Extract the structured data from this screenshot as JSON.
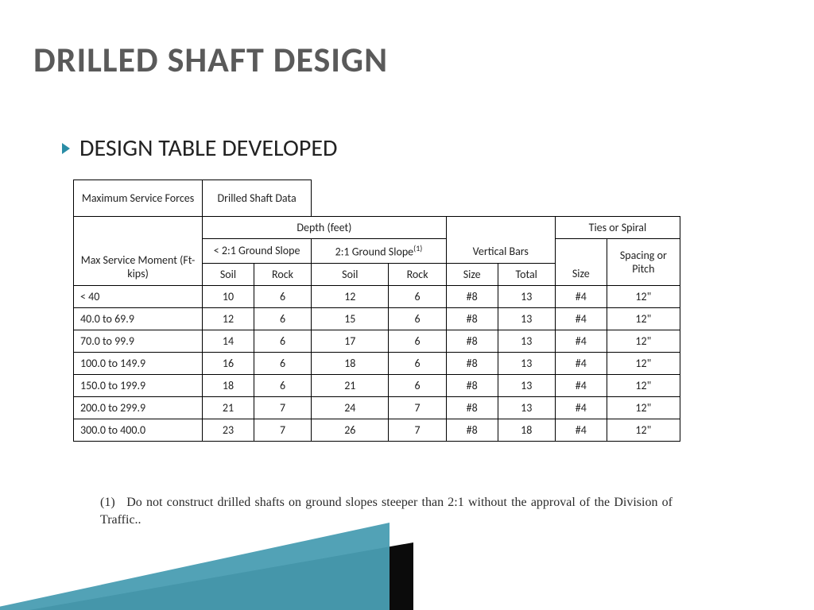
{
  "title": "DRILLED SHAFT DESIGN",
  "bullet": "DESIGN TABLE DEVELOPED",
  "table": {
    "header": {
      "msf": "Maximum Service Forces",
      "dsd": "Drilled Shaft Data",
      "depth": "Depth (feet)",
      "slope_lt": "< 2:1 Ground Slope",
      "slope_eq": "2:1 Ground Slope",
      "slope_eq_sup": "(1)",
      "vbars": "Vertical Bars",
      "ties": "Ties or Spiral",
      "moment": "Max Service Moment (Ft-kips)",
      "soil": "Soil",
      "rock": "Rock",
      "size": "Size",
      "total": "Total",
      "spacing": "Spacing or Pitch"
    },
    "columns_width": [
      "130",
      "52",
      "58",
      "78",
      "58",
      "52",
      "58",
      "52",
      "74"
    ],
    "rows": [
      {
        "label": "< 40",
        "soil1": "10",
        "rock1": "6",
        "soil2": "12",
        "rock2": "6",
        "vsize": "#8",
        "vtotal": "13",
        "tsize": "#4",
        "pitch": "12\""
      },
      {
        "label": "40.0 to 69.9",
        "soil1": "12",
        "rock1": "6",
        "soil2": "15",
        "rock2": "6",
        "vsize": "#8",
        "vtotal": "13",
        "tsize": "#4",
        "pitch": "12\""
      },
      {
        "label": "70.0 to 99.9",
        "soil1": "14",
        "rock1": "6",
        "soil2": "17",
        "rock2": "6",
        "vsize": "#8",
        "vtotal": "13",
        "tsize": "#4",
        "pitch": "12\""
      },
      {
        "label": "100.0 to 149.9",
        "soil1": "16",
        "rock1": "6",
        "soil2": "18",
        "rock2": "6",
        "vsize": "#8",
        "vtotal": "13",
        "tsize": "#4",
        "pitch": "12\""
      },
      {
        "label": "150.0 to 199.9",
        "soil1": "18",
        "rock1": "6",
        "soil2": "21",
        "rock2": "6",
        "vsize": "#8",
        "vtotal": "13",
        "tsize": "#4",
        "pitch": "12\""
      },
      {
        "label": "200.0 to 299.9",
        "soil1": "21",
        "rock1": "7",
        "soil2": "24",
        "rock2": "7",
        "vsize": "#8",
        "vtotal": "13",
        "tsize": "#4",
        "pitch": "12\""
      },
      {
        "label": "300.0 to 400.0",
        "soil1": "23",
        "rock1": "7",
        "soil2": "26",
        "rock2": "7",
        "vsize": "#8",
        "vtotal": "18",
        "tsize": "#4",
        "pitch": "12\""
      }
    ]
  },
  "footnote": {
    "num": "(1)",
    "text": "Do not construct drilled shafts on ground slopes steeper than 2:1 without the approval of the Division of Traffic.."
  },
  "colors": {
    "title": "#5a5a5a",
    "accent": "#2a8da6",
    "text": "#222222",
    "border": "#000000",
    "bg": "#ffffff"
  }
}
